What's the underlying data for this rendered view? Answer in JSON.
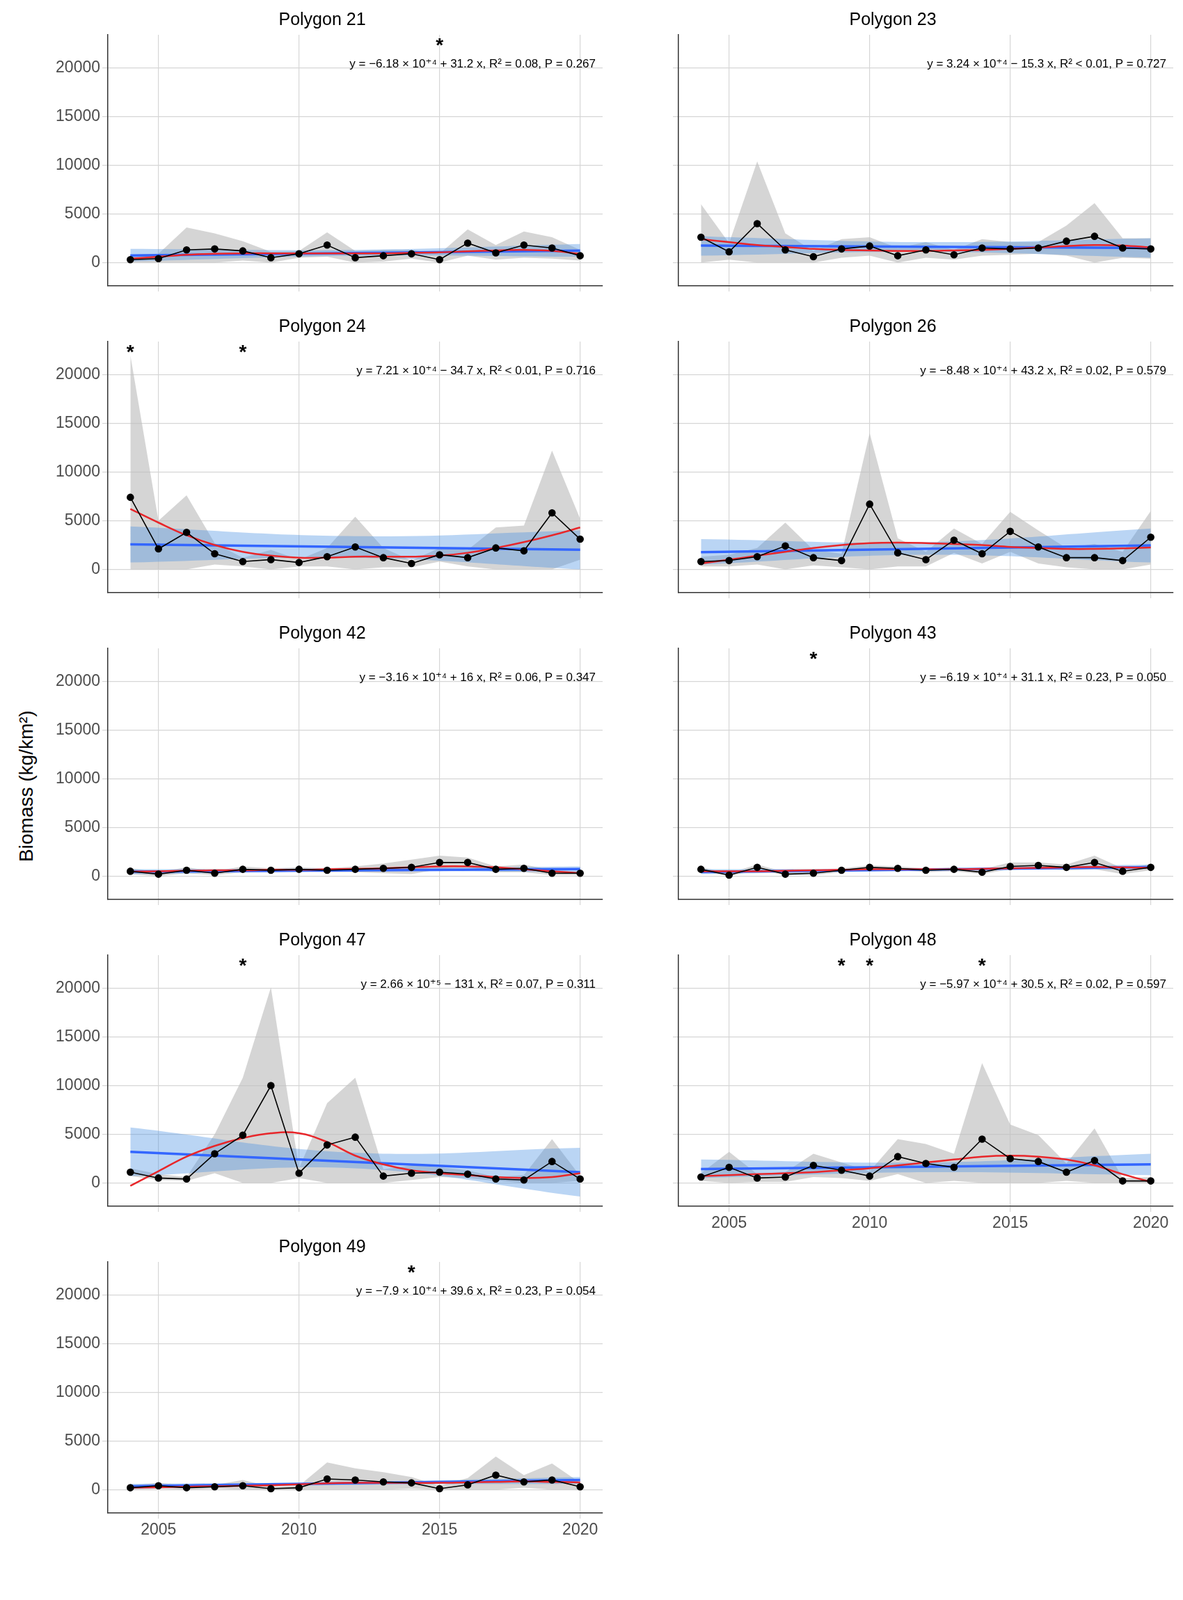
{
  "chart_data": {
    "type": "line",
    "ylabel": "Biomass (kg/km²)",
    "x": [
      2004,
      2005,
      2006,
      2007,
      2008,
      2009,
      2010,
      2011,
      2012,
      2013,
      2014,
      2015,
      2016,
      2017,
      2018,
      2019,
      2020
    ],
    "xlim": [
      2003.2,
      2020.8
    ],
    "xticks": [
      2005,
      2010,
      2015,
      2020
    ],
    "ylim": [
      -2400,
      23400
    ],
    "yticks": [
      0,
      5000,
      10000,
      15000,
      20000
    ],
    "grid": true,
    "layers": {
      "values": {
        "color": "#000000",
        "marker": "circle",
        "line_style": "solid"
      },
      "ci": {
        "color": "#bebebe"
      },
      "fit": {
        "color": "#3366ff",
        "line_style": "solid"
      },
      "fit_band": {
        "color": "#4a90e2"
      },
      "smooth": {
        "color": "#e8262a",
        "line_style": "solid"
      }
    },
    "panels": [
      {
        "title": "Polygon 21",
        "tick_labels": "y",
        "annotation": "y = −6.18 × 10⁺⁴ + 31.2 x, R² = 0.08, P = 0.267",
        "asterisks": [
          {
            "x": 2015,
            "text": "*"
          }
        ],
        "values": [
          300,
          400,
          1300,
          1400,
          1200,
          500,
          900,
          1800,
          500,
          700,
          900,
          300,
          2000,
          1000,
          1800,
          1500,
          700
        ],
        "ci_lower": [
          0,
          0,
          0,
          0,
          200,
          0,
          500,
          600,
          0,
          100,
          400,
          0,
          700,
          300,
          500,
          400,
          200
        ],
        "ci_upper": [
          800,
          900,
          3600,
          3000,
          2200,
          1100,
          1200,
          3100,
          1200,
          1300,
          1300,
          900,
          3400,
          1800,
          3200,
          2600,
          1300
        ],
        "fit": {
          "x": [
            2004,
            2020
          ],
          "values": [
            720,
            1220
          ]
        },
        "fit_band": {
          "x": [
            2004,
            2012,
            2020
          ],
          "lower": [
            100,
            700,
            600
          ],
          "upper": [
            1400,
            1300,
            1900
          ]
        },
        "smooth": [
          400,
          600,
          800,
          900,
          950,
          950,
          950,
          950,
          950,
          950,
          1000,
          1050,
          1150,
          1250,
          1300,
          1200,
          900
        ]
      },
      {
        "title": "Polygon 23",
        "tick_labels": false,
        "annotation": "y = 3.24 × 10⁺⁴ − 15.3 x, R² < 0.01, P = 0.727",
        "asterisks": [],
        "values": [
          2600,
          1100,
          4000,
          1300,
          600,
          1400,
          1700,
          700,
          1300,
          800,
          1500,
          1400,
          1500,
          2200,
          2700,
          1500,
          1400
        ],
        "ci_lower": [
          0,
          300,
          0,
          0,
          0,
          500,
          700,
          0,
          500,
          300,
          700,
          800,
          900,
          700,
          0,
          500,
          400
        ],
        "ci_upper": [
          6000,
          2000,
          10400,
          3000,
          1200,
          2400,
          2600,
          1500,
          2100,
          1300,
          2400,
          2100,
          2100,
          3800,
          6100,
          2500,
          2500
        ],
        "fit": {
          "x": [
            2004,
            2020
          ],
          "values": [
            1740,
            1490
          ]
        },
        "fit_band": {
          "x": [
            2004,
            2012,
            2020
          ],
          "lower": [
            700,
            1100,
            500
          ],
          "upper": [
            2700,
            2100,
            2500
          ]
        },
        "smooth": [
          2400,
          2100,
          1800,
          1600,
          1400,
          1300,
          1250,
          1200,
          1200,
          1250,
          1300,
          1400,
          1550,
          1700,
          1800,
          1750,
          1550
        ]
      },
      {
        "title": "Polygon 24",
        "tick_labels": "y",
        "annotation": "y = 7.21 × 10⁺⁴ − 34.7 x, R² < 0.01, P = 0.716",
        "asterisks": [
          {
            "x": 2004,
            "text": "*"
          },
          {
            "x": 2008,
            "text": "*"
          }
        ],
        "values": [
          7400,
          2100,
          3800,
          1600,
          800,
          1000,
          700,
          1300,
          2300,
          1200,
          600,
          1500,
          1200,
          2200,
          1900,
          5800,
          3100
        ],
        "ci_lower": [
          0,
          0,
          0,
          500,
          300,
          0,
          300,
          300,
          0,
          200,
          200,
          800,
          300,
          0,
          0,
          0,
          1000
        ],
        "ci_upper": [
          22000,
          5000,
          7600,
          2700,
          1200,
          2000,
          1000,
          2200,
          5400,
          2200,
          900,
          2200,
          2000,
          4300,
          4500,
          12200,
          5200
        ],
        "fit": {
          "x": [
            2004,
            2020
          ],
          "values": [
            2560,
            2010
          ]
        },
        "fit_band": {
          "x": [
            2004,
            2012,
            2020
          ],
          "lower": [
            700,
            1200,
            0
          ],
          "upper": [
            4400,
            3400,
            4000
          ]
        },
        "smooth": [
          6200,
          4800,
          3500,
          2500,
          1800,
          1400,
          1200,
          1200,
          1300,
          1300,
          1300,
          1400,
          1700,
          2200,
          2800,
          3500,
          4300
        ]
      },
      {
        "title": "Polygon 26",
        "tick_labels": false,
        "annotation": "y = −8.48 × 10⁺⁴ + 43.2 x, R² = 0.02, P = 0.579",
        "asterisks": [],
        "values": [
          800,
          900,
          1300,
          2400,
          1200,
          900,
          6700,
          1700,
          1000,
          3000,
          1600,
          3900,
          2300,
          1200,
          1200,
          900,
          3300
        ],
        "ci_lower": [
          300,
          300,
          500,
          0,
          400,
          200,
          0,
          300,
          300,
          1700,
          600,
          1800,
          600,
          200,
          0,
          0,
          500
        ],
        "ci_upper": [
          1300,
          1500,
          2200,
          4800,
          2000,
          1600,
          14000,
          3200,
          1800,
          4200,
          2600,
          5900,
          4000,
          2200,
          2600,
          1800,
          6000
        ],
        "fit": {
          "x": [
            2004,
            2020
          ],
          "values": [
            1770,
            2460
          ]
        },
        "fit_band": {
          "x": [
            2004,
            2012,
            2020
          ],
          "lower": [
            500,
            1500,
            700
          ],
          "upper": [
            3100,
            2800,
            4200
          ]
        },
        "smooth": [
          600,
          1000,
          1400,
          1800,
          2200,
          2500,
          2700,
          2750,
          2700,
          2600,
          2500,
          2300,
          2200,
          2100,
          2100,
          2150,
          2250
        ]
      },
      {
        "title": "Polygon 42",
        "tick_labels": "y",
        "annotation": "y = −3.16 × 10⁺⁴ + 16 x, R² = 0.06, P = 0.347",
        "asterisks": [],
        "values": [
          500,
          200,
          600,
          300,
          700,
          600,
          700,
          600,
          700,
          800,
          900,
          1400,
          1400,
          700,
          800,
          300,
          300
        ],
        "ci_lower": [
          200,
          0,
          300,
          100,
          400,
          400,
          500,
          400,
          400,
          300,
          200,
          700,
          900,
          400,
          400,
          100,
          100
        ],
        "ci_upper": [
          800,
          400,
          900,
          500,
          1000,
          800,
          900,
          800,
          1000,
          1300,
          1700,
          2100,
          1900,
          1000,
          1200,
          600,
          500
        ],
        "fit": {
          "x": [
            2004,
            2020
          ],
          "values": [
            460,
            720
          ]
        },
        "fit_band": {
          "x": [
            2004,
            2012,
            2020
          ],
          "lower": [
            200,
            500,
            400
          ],
          "upper": [
            700,
            800,
            1000
          ]
        },
        "smooth": [
          450,
          500,
          550,
          600,
          600,
          650,
          650,
          700,
          750,
          800,
          900,
          1000,
          1000,
          900,
          700,
          500,
          300
        ]
      },
      {
        "title": "Polygon 43",
        "tick_labels": false,
        "annotation": "y = −6.19 × 10⁺⁴ + 31.1 x, R² = 0.23, P = 0.050",
        "asterisks": [
          {
            "x": 2008,
            "text": "*"
          }
        ],
        "values": [
          700,
          100,
          900,
          200,
          300,
          600,
          900,
          800,
          600,
          700,
          400,
          1000,
          1100,
          900,
          1400,
          500,
          900
        ],
        "ci_lower": [
          500,
          0,
          600,
          100,
          100,
          400,
          700,
          600,
          400,
          500,
          200,
          700,
          800,
          600,
          700,
          200,
          600
        ],
        "ci_upper": [
          900,
          300,
          1200,
          400,
          500,
          800,
          1100,
          1000,
          800,
          900,
          700,
          1400,
          1400,
          1200,
          2100,
          800,
          1200
        ],
        "fit": {
          "x": [
            2004,
            2020
          ],
          "values": [
            420,
            920
          ]
        },
        "fit_band": {
          "x": [
            2004,
            2012,
            2020
          ],
          "lower": [
            200,
            600,
            700
          ],
          "upper": [
            700,
            800,
            1200
          ]
        },
        "smooth": [
          500,
          500,
          500,
          550,
          600,
          650,
          700,
          700,
          700,
          700,
          750,
          800,
          850,
          900,
          950,
          900,
          850
        ]
      },
      {
        "title": "Polygon 47",
        "tick_labels": "y",
        "annotation": "y = 2.66 × 10⁺⁵ − 131 x, R² = 0.07, P = 0.311",
        "asterisks": [
          {
            "x": 2008,
            "text": "*"
          }
        ],
        "values": [
          1100,
          500,
          400,
          3000,
          4900,
          10000,
          1000,
          3900,
          4700,
          700,
          1000,
          1100,
          900,
          400,
          300,
          2200,
          400
        ],
        "ci_lower": [
          700,
          300,
          200,
          1000,
          0,
          0,
          500,
          0,
          0,
          0,
          300,
          600,
          500,
          200,
          0,
          0,
          200
        ],
        "ci_upper": [
          1500,
          900,
          600,
          5000,
          10800,
          20100,
          1500,
          8200,
          10800,
          1400,
          1800,
          1600,
          1300,
          600,
          800,
          4500,
          700
        ],
        "fit": {
          "x": [
            2004,
            2020
          ],
          "values": [
            3200,
            1100
          ]
        },
        "fit_band": {
          "x": [
            2004,
            2012,
            2020
          ],
          "lower": [
            700,
            1500,
            -1400
          ],
          "upper": [
            5700,
            3100,
            3600
          ]
        },
        "smooth": [
          -300,
          1200,
          2700,
          3800,
          4600,
          5100,
          5100,
          4200,
          2800,
          1900,
          1300,
          1000,
          800,
          600,
          500,
          600,
          1000
        ]
      },
      {
        "title": "Polygon 48",
        "tick_labels": "x",
        "annotation": "y = −5.97 × 10⁺⁴ + 30.5 x, R² = 0.02, P = 0.597",
        "asterisks": [
          {
            "x": 2009,
            "text": "*"
          },
          {
            "x": 2010,
            "text": "*"
          },
          {
            "x": 2014,
            "text": "*"
          }
        ],
        "values": [
          600,
          1600,
          500,
          600,
          1800,
          1300,
          700,
          2700,
          2000,
          1600,
          4500,
          2500,
          2200,
          1100,
          2300,
          200,
          200
        ],
        "ci_lower": [
          200,
          0,
          100,
          100,
          600,
          500,
          200,
          900,
          0,
          200,
          0,
          0,
          0,
          200,
          0,
          0,
          0
        ],
        "ci_upper": [
          1000,
          3200,
          900,
          1100,
          3000,
          2100,
          1200,
          4500,
          4000,
          3000,
          12300,
          6000,
          4900,
          2000,
          5600,
          500,
          600
        ],
        "fit": {
          "x": [
            2004,
            2020
          ],
          "values": [
            1420,
            1910
          ]
        },
        "fit_band": {
          "x": [
            2004,
            2012,
            2020
          ],
          "lower": [
            500,
            1100,
            800
          ],
          "upper": [
            2400,
            2100,
            3000
          ]
        },
        "smooth": [
          700,
          800,
          900,
          1000,
          1100,
          1300,
          1500,
          1800,
          2100,
          2400,
          2700,
          2800,
          2700,
          2400,
          1800,
          900,
          100
        ]
      },
      {
        "title": "Polygon 49",
        "tick_labels": true,
        "annotation": "y = −7.9 × 10⁺⁴ + 39.6 x, R² = 0.23, P = 0.054",
        "asterisks": [
          {
            "x": 2014,
            "text": "*"
          }
        ],
        "values": [
          200,
          400,
          200,
          300,
          400,
          100,
          200,
          1100,
          1000,
          800,
          700,
          100,
          500,
          1500,
          800,
          1000,
          300
        ],
        "ci_lower": [
          0,
          100,
          0,
          100,
          0,
          0,
          0,
          0,
          0,
          0,
          100,
          0,
          0,
          0,
          200,
          0,
          0
        ],
        "ci_upper": [
          400,
          700,
          400,
          500,
          1000,
          300,
          400,
          2800,
          2200,
          1800,
          1300,
          400,
          1200,
          3400,
          1500,
          2700,
          700
        ],
        "fit": {
          "x": [
            2004,
            2020
          ],
          "values": [
            360,
            990
          ]
        },
        "fit_band": {
          "x": [
            2004,
            2012,
            2020
          ],
          "lower": [
            100,
            500,
            600
          ],
          "upper": [
            600,
            800,
            1300
          ]
        },
        "smooth": [
          200,
          250,
          300,
          350,
          400,
          450,
          550,
          650,
          700,
          700,
          700,
          700,
          750,
          800,
          850,
          800,
          750
        ]
      }
    ]
  }
}
